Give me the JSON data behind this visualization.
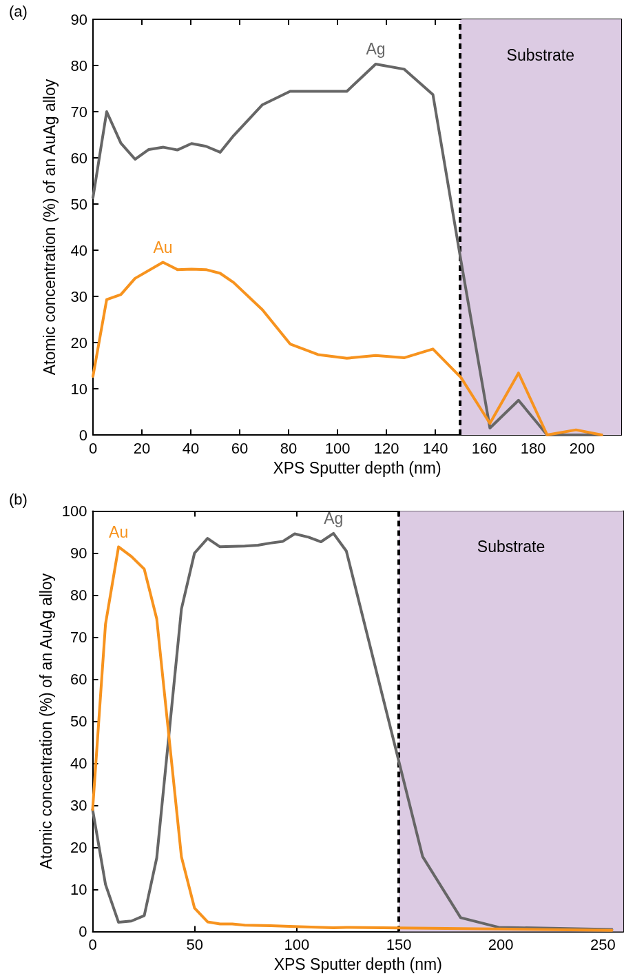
{
  "chart_data": [
    {
      "type": "line",
      "title": "(a)",
      "xlabel": "XPS Sputter depth (nm)",
      "ylabel": "Atomic concentration (%) of an AuAg alloy",
      "xlim": [
        0,
        216
      ],
      "xticks": [
        0,
        20,
        40,
        60,
        80,
        100,
        120,
        140,
        160,
        180,
        200
      ],
      "ylim": [
        0,
        90
      ],
      "yticks": [
        0,
        10,
        20,
        30,
        40,
        50,
        60,
        70,
        80,
        90
      ],
      "grid": false,
      "marker": "none",
      "line_style": "solid",
      "series": [
        {
          "name": "Ag",
          "color": "#666666",
          "x": [
            0,
            5.6,
            11.4,
            17.2,
            22.8,
            28.8,
            34.5,
            40.3,
            46.2,
            52,
            57.5,
            69.3,
            80.6,
            92,
            103.8,
            115.6,
            127.2,
            139,
            150.5,
            162.3,
            174,
            185.7,
            197.5,
            208
          ],
          "values": [
            51.4,
            70.0,
            63.2,
            59.7,
            61.8,
            62.3,
            61.7,
            63.1,
            62.5,
            61.2,
            64.8,
            71.5,
            74.4,
            74.4,
            74.4,
            80.3,
            79.2,
            73.7,
            37.6,
            1.5,
            7.5,
            0,
            0,
            0
          ]
        },
        {
          "name": "Au",
          "color": "#f7931e",
          "x": [
            0,
            5.6,
            11.4,
            17.2,
            28.6,
            34.5,
            40.3,
            46.2,
            52,
            57.5,
            69.3,
            80.6,
            92,
            103.8,
            115.6,
            127.2,
            139,
            150.5,
            162.3,
            174,
            185.7,
            197.5,
            208
          ],
          "values": [
            12.7,
            29.3,
            30.4,
            33.9,
            37.4,
            35.8,
            35.9,
            35.8,
            35.0,
            33.0,
            27.1,
            19.7,
            17.4,
            16.6,
            17.2,
            16.7,
            18.6,
            12.4,
            2.5,
            13.4,
            0,
            1.1,
            0
          ]
        }
      ],
      "ref_lines": [
        {
          "axis": "x",
          "value": 150,
          "color": "#000000",
          "line_style": "dashed"
        }
      ],
      "bands": [
        {
          "axis": "x",
          "from": 150,
          "to": 216,
          "label": "Substrate",
          "color": "#dccbe3"
        }
      ]
    },
    {
      "type": "line",
      "title": "(b)",
      "xlabel": "XPS Sputter depth (nm)",
      "ylabel": "Atomic concentration (%) of an AuAg alloy",
      "xlim": [
        0,
        260
      ],
      "xticks": [
        0,
        50,
        100,
        150,
        200,
        250
      ],
      "ylim": [
        0,
        100
      ],
      "yticks": [
        0,
        10,
        20,
        30,
        40,
        50,
        60,
        70,
        80,
        90,
        100
      ],
      "grid": false,
      "marker": "none",
      "line_style": "solid",
      "series": [
        {
          "name": "Ag",
          "color": "#666666",
          "x": [
            0,
            6.3,
            12.7,
            19,
            25.3,
            31.4,
            43.5,
            49.9,
            56.3,
            62.4,
            74.5,
            81,
            87.1,
            93.2,
            99,
            105.8,
            111.9,
            118,
            124.3,
            161.7,
            180.3,
            199,
            254.4
          ],
          "values": [
            29.0,
            11.2,
            2.2,
            2.5,
            3.8,
            17.5,
            76.7,
            90.0,
            93.5,
            91.5,
            91.7,
            91.9,
            92.4,
            92.8,
            94.6,
            93.8,
            92.7,
            94.7,
            90.5,
            17.8,
            3.3,
            1.0,
            0.5
          ]
        },
        {
          "name": "Au",
          "color": "#f7931e",
          "x": [
            0,
            6.3,
            12.7,
            19,
            25.3,
            31.4,
            43.5,
            49.9,
            56.3,
            62.4,
            68.4,
            74.5,
            87.1,
            99,
            118,
            124.3,
            254.4
          ],
          "values": [
            29.0,
            73.1,
            91.5,
            89.2,
            86.2,
            74.4,
            17.8,
            5.6,
            2.3,
            1.8,
            1.8,
            1.5,
            1.4,
            1.2,
            0.9,
            1.0,
            0.3
          ]
        }
      ],
      "ref_lines": [
        {
          "axis": "x",
          "value": 150,
          "color": "#000000",
          "line_style": "dashed"
        }
      ],
      "bands": [
        {
          "axis": "x",
          "from": 150,
          "to": 260,
          "label": "Substrate",
          "color": "#dccbe3"
        }
      ]
    }
  ]
}
